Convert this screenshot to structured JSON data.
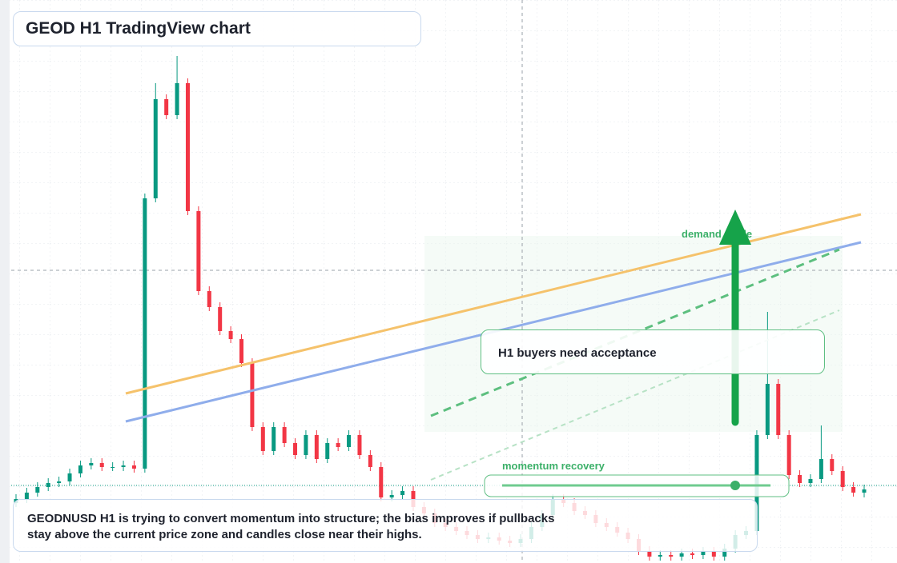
{
  "chart_data": {
    "type": "candlestick",
    "title": "GEOD H1 TradingView chart",
    "callout": "H1 buyers need acceptance",
    "annotations": [
      "demand guide",
      "momentum recovery"
    ],
    "note": "GEODNUSD H1 is trying to convert momentum into structure; the bias improves if pullbacks stay above the current price zone and candles close near their highs.",
    "ylim": [
      0,
      704
    ],
    "up_color": "#089981",
    "down_color": "#f23645",
    "open": [
      75,
      80,
      88,
      95,
      100,
      102,
      112,
      122,
      125,
      120,
      120,
      122,
      118,
      456,
      580,
      560,
      600,
      440,
      340,
      320,
      290,
      280,
      250,
      170,
      140,
      170,
      150,
      135,
      160,
      130,
      150,
      145,
      160,
      135,
      120,
      82,
      85,
      90,
      70,
      62,
      50,
      45,
      40,
      35,
      30,
      32,
      28,
      25,
      30,
      45,
      60,
      80,
      75,
      65,
      60,
      50,
      45,
      38,
      30,
      15,
      8,
      10,
      8,
      12,
      10,
      14,
      8,
      18,
      35,
      40,
      160,
      224,
      160,
      110,
      100,
      105,
      130,
      115,
      95,
      88
    ],
    "high": [
      86,
      94,
      101,
      106,
      108,
      118,
      128,
      131,
      131,
      126,
      128,
      128,
      462,
      600,
      586,
      634,
      606,
      446,
      346,
      326,
      296,
      286,
      256,
      176,
      176,
      176,
      156,
      166,
      166,
      156,
      156,
      166,
      166,
      141,
      126,
      91,
      96,
      96,
      76,
      68,
      56,
      51,
      46,
      41,
      38,
      38,
      34,
      36,
      51,
      66,
      86,
      86,
      81,
      71,
      66,
      56,
      51,
      44,
      36,
      21,
      16,
      16,
      18,
      18,
      20,
      20,
      24,
      41,
      46,
      166,
      314,
      230,
      166,
      116,
      111,
      172,
      136,
      121,
      101,
      98
    ],
    "low": [
      70,
      75,
      83,
      90,
      95,
      97,
      107,
      117,
      115,
      115,
      115,
      113,
      113,
      451,
      555,
      555,
      435,
      335,
      315,
      285,
      275,
      245,
      165,
      135,
      135,
      145,
      130,
      130,
      125,
      125,
      140,
      140,
      130,
      115,
      77,
      77,
      80,
      65,
      57,
      45,
      40,
      35,
      30,
      25,
      25,
      23,
      20,
      20,
      25,
      40,
      55,
      70,
      60,
      55,
      45,
      40,
      33,
      25,
      10,
      3,
      3,
      3,
      3,
      5,
      5,
      3,
      3,
      13,
      30,
      35,
      155,
      155,
      105,
      95,
      95,
      100,
      110,
      90,
      83,
      82
    ],
    "close": [
      80,
      88,
      95,
      100,
      102,
      112,
      122,
      125,
      120,
      120,
      122,
      118,
      456,
      580,
      560,
      600,
      440,
      340,
      320,
      290,
      280,
      250,
      170,
      140,
      170,
      150,
      135,
      160,
      130,
      150,
      145,
      160,
      135,
      120,
      82,
      85,
      90,
      70,
      62,
      50,
      45,
      40,
      35,
      30,
      32,
      28,
      25,
      30,
      45,
      60,
      80,
      75,
      65,
      60,
      50,
      45,
      38,
      30,
      15,
      8,
      10,
      8,
      12,
      10,
      14,
      8,
      18,
      35,
      40,
      160,
      224,
      160,
      110,
      100,
      105,
      130,
      115,
      95,
      88,
      92
    ]
  }
}
